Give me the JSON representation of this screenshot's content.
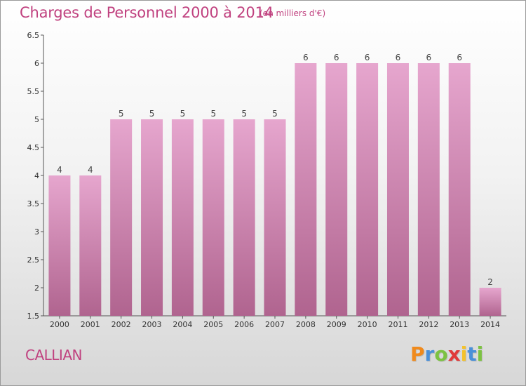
{
  "chart_data": {
    "type": "bar",
    "title": "Charges de Personnel 2000 à 2014",
    "subtitle": "(en milliers d'€)",
    "categories": [
      "2000",
      "2001",
      "2002",
      "2003",
      "2004",
      "2005",
      "2006",
      "2007",
      "2008",
      "2009",
      "2010",
      "2011",
      "2012",
      "2013",
      "2014"
    ],
    "values": [
      4,
      4,
      5,
      5,
      5,
      5,
      5,
      5,
      6,
      6,
      6,
      6,
      6,
      6,
      2
    ],
    "value_labels": [
      "4",
      "4",
      "5",
      "5",
      "5",
      "5",
      "5",
      "5",
      "6",
      "6",
      "6",
      "6",
      "6",
      "6",
      "2"
    ],
    "ylim": [
      1.5,
      6.5
    ],
    "yticks": [
      "1.5",
      "2",
      "2.5",
      "3",
      "3.5",
      "4",
      "4.5",
      "5",
      "5.5",
      "6",
      "6.5"
    ],
    "bar_color": "#d98fb8",
    "grid": false,
    "xlabel": "",
    "ylabel": ""
  },
  "footer": {
    "commune": "CALLIAN",
    "logo_letters": [
      "P",
      "r",
      "o",
      "x",
      "i",
      "t",
      "i"
    ],
    "logo_colors": [
      "#f08a1c",
      "#4a90d9",
      "#7cc242",
      "#e03a3a",
      "#f4c22b",
      "#4a90d9",
      "#7cc242"
    ]
  }
}
